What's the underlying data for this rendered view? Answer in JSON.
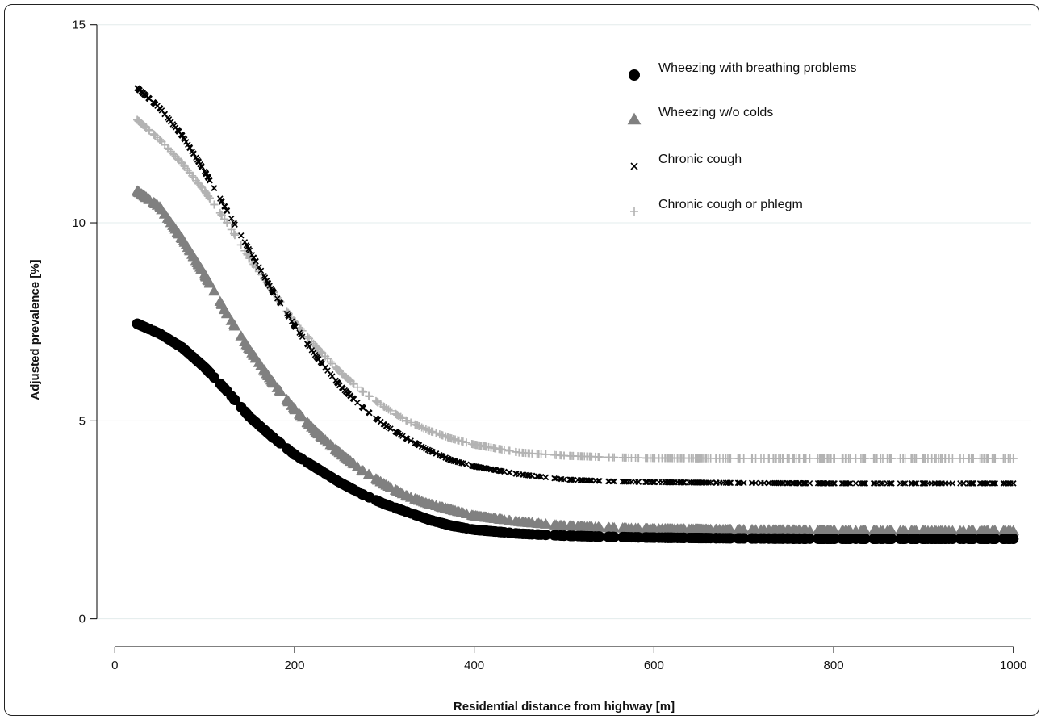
{
  "chart_data": {
    "type": "scatter",
    "title": "",
    "xlabel": "Residential distance from highway [m]",
    "ylabel": "Adjusted prevalence [%]",
    "xlim": [
      -20,
      1020
    ],
    "ylim": [
      -0.7,
      15.3
    ],
    "xticks": [
      0,
      200,
      400,
      600,
      800,
      1000
    ],
    "yticks": [
      0,
      5,
      10,
      15
    ],
    "grid": "horizontal",
    "legend_position": "top-right",
    "x_range": [
      25,
      1000
    ],
    "series": [
      {
        "name": "Wheezing with breathing problems",
        "marker": "circle",
        "color": "#000000",
        "points": [
          [
            25,
            7.45
          ],
          [
            50,
            7.2
          ],
          [
            75,
            6.85
          ],
          [
            100,
            6.35
          ],
          [
            125,
            5.75
          ],
          [
            150,
            5.1
          ],
          [
            175,
            4.6
          ],
          [
            200,
            4.15
          ],
          [
            225,
            3.8
          ],
          [
            250,
            3.45
          ],
          [
            275,
            3.15
          ],
          [
            300,
            2.9
          ],
          [
            325,
            2.7
          ],
          [
            350,
            2.5
          ],
          [
            375,
            2.35
          ],
          [
            400,
            2.25
          ],
          [
            450,
            2.15
          ],
          [
            500,
            2.1
          ],
          [
            550,
            2.07
          ],
          [
            600,
            2.05
          ],
          [
            700,
            2.03
          ],
          [
            800,
            2.02
          ],
          [
            900,
            2.02
          ],
          [
            1000,
            2.02
          ]
        ]
      },
      {
        "name": "Wheezing w/o colds",
        "marker": "triangle",
        "color": "#808080",
        "points": [
          [
            25,
            10.8
          ],
          [
            50,
            10.4
          ],
          [
            75,
            9.6
          ],
          [
            100,
            8.7
          ],
          [
            125,
            7.7
          ],
          [
            150,
            6.8
          ],
          [
            175,
            6.0
          ],
          [
            200,
            5.3
          ],
          [
            225,
            4.7
          ],
          [
            250,
            4.2
          ],
          [
            275,
            3.75
          ],
          [
            300,
            3.4
          ],
          [
            325,
            3.1
          ],
          [
            350,
            2.9
          ],
          [
            375,
            2.75
          ],
          [
            400,
            2.6
          ],
          [
            450,
            2.45
          ],
          [
            500,
            2.35
          ],
          [
            550,
            2.3
          ],
          [
            600,
            2.27
          ],
          [
            700,
            2.25
          ],
          [
            800,
            2.23
          ],
          [
            900,
            2.22
          ],
          [
            1000,
            2.22
          ]
        ]
      },
      {
        "name": "Chronic cough",
        "marker": "x",
        "color": "#000000",
        "points": [
          [
            25,
            13.4
          ],
          [
            50,
            12.9
          ],
          [
            75,
            12.2
          ],
          [
            100,
            11.3
          ],
          [
            125,
            10.3
          ],
          [
            150,
            9.3
          ],
          [
            175,
            8.3
          ],
          [
            200,
            7.4
          ],
          [
            225,
            6.6
          ],
          [
            250,
            5.9
          ],
          [
            275,
            5.35
          ],
          [
            300,
            4.9
          ],
          [
            325,
            4.55
          ],
          [
            350,
            4.25
          ],
          [
            375,
            4.0
          ],
          [
            400,
            3.85
          ],
          [
            450,
            3.65
          ],
          [
            500,
            3.52
          ],
          [
            550,
            3.47
          ],
          [
            600,
            3.45
          ],
          [
            700,
            3.43
          ],
          [
            800,
            3.42
          ],
          [
            900,
            3.42
          ],
          [
            1000,
            3.42
          ]
        ]
      },
      {
        "name": "Chronic cough or phlegm",
        "marker": "plus",
        "color": "#b3b3b3",
        "points": [
          [
            25,
            12.6
          ],
          [
            50,
            12.1
          ],
          [
            75,
            11.5
          ],
          [
            100,
            10.8
          ],
          [
            125,
            10.0
          ],
          [
            150,
            9.1
          ],
          [
            175,
            8.3
          ],
          [
            200,
            7.5
          ],
          [
            225,
            6.85
          ],
          [
            250,
            6.25
          ],
          [
            275,
            5.75
          ],
          [
            300,
            5.35
          ],
          [
            325,
            5.0
          ],
          [
            350,
            4.75
          ],
          [
            375,
            4.55
          ],
          [
            400,
            4.4
          ],
          [
            450,
            4.2
          ],
          [
            500,
            4.12
          ],
          [
            550,
            4.08
          ],
          [
            600,
            4.06
          ],
          [
            700,
            4.05
          ],
          [
            800,
            4.05
          ],
          [
            900,
            4.05
          ],
          [
            1000,
            4.05
          ]
        ]
      }
    ]
  }
}
